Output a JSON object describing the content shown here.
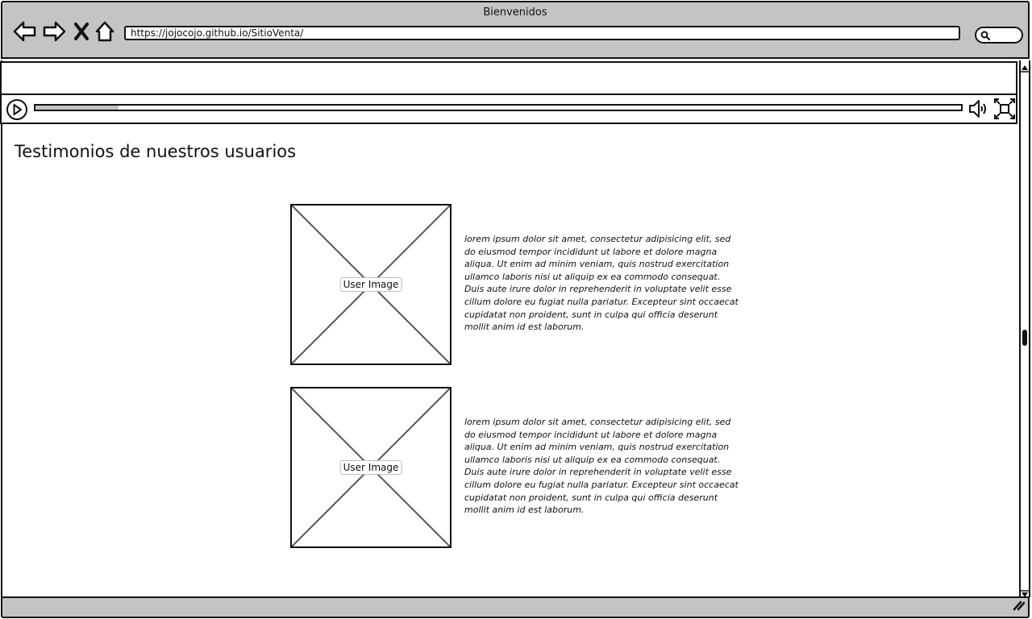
{
  "browser": {
    "window_title": "Bienvenidos",
    "url": "https://jojocojo.github.io/SitioVenta/",
    "icons": {
      "back": "back-arrow-icon",
      "forward": "forward-arrow-icon",
      "stop": "close-icon",
      "home": "home-icon",
      "search": "search-icon"
    }
  },
  "media_player": {
    "progress": 0.09,
    "icons": {
      "play": "play-icon",
      "volume": "volume-icon",
      "fullscreen": "fullscreen-icon"
    }
  },
  "page": {
    "title": "Testimonios de nuestros usuarios",
    "testimonials": [
      {
        "image_label": "User Image",
        "text": "lorem ipsum dolor sit amet, consectetur adipisicing elit, sed do eiusmod tempor incididunt ut labore et dolore magna aliqua. Ut enim ad minim veniam, quis nostrud exercitation ullamco laboris nisi ut aliquip ex ea commodo consequat. Duis aute irure dolor in reprehenderit in voluptate velit esse cillum dolore eu fugiat nulla pariatur. Excepteur sint occaecat cupidatat non proident, sunt in culpa qui officia deserunt mollit anim id est laborum."
      },
      {
        "image_label": "User Image",
        "text": "lorem ipsum dolor sit amet, consectetur adipisicing elit, sed do eiusmod tempor incididunt ut labore et dolore magna aliqua. Ut enim ad minim veniam, quis nostrud exercitation ullamco laboris nisi ut aliquip ex ea commodo consequat. Duis aute irure dolor in reprehenderit in voluptate velit esse cillum dolore eu fugiat nulla pariatur. Excepteur sint occaecat cupidatat non proident, sunt in culpa qui officia deserunt mollit anim id est laborum."
      }
    ]
  },
  "colors": {
    "chrome": "#c4c4c4",
    "stroke": "#111111",
    "placeholder_cross": "#555555"
  }
}
